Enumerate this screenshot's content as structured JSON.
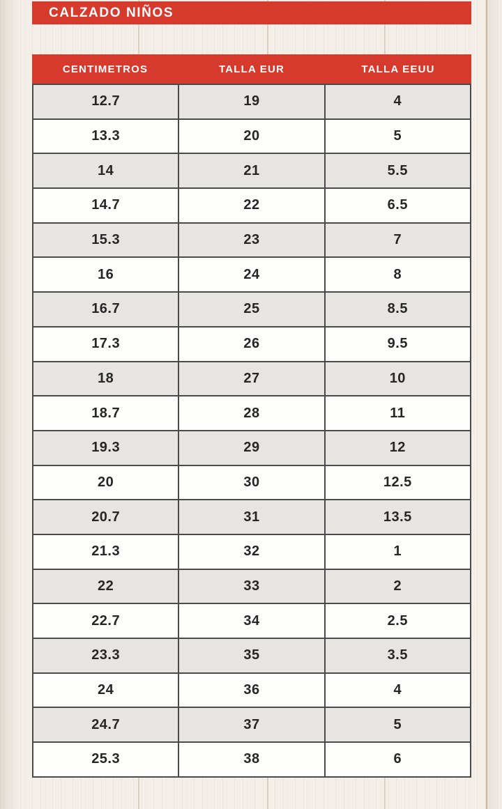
{
  "banner": {
    "title": "CALZADO NIÑOS"
  },
  "chart_data": {
    "type": "table",
    "title": "CALZADO NIÑOS",
    "columns": [
      "CENTIMETROS",
      "TALLA EUR",
      "TALLA EEUU"
    ],
    "rows": [
      [
        "12.7",
        "19",
        "4"
      ],
      [
        "13.3",
        "20",
        "5"
      ],
      [
        "14",
        "21",
        "5.5"
      ],
      [
        "14.7",
        "22",
        "6.5"
      ],
      [
        "15.3",
        "23",
        "7"
      ],
      [
        "16",
        "24",
        "8"
      ],
      [
        "16.7",
        "25",
        "8.5"
      ],
      [
        "17.3",
        "26",
        "9.5"
      ],
      [
        "18",
        "27",
        "10"
      ],
      [
        "18.7",
        "28",
        "11"
      ],
      [
        "19.3",
        "29",
        "12"
      ],
      [
        "20",
        "30",
        "12.5"
      ],
      [
        "20.7",
        "31",
        "13.5"
      ],
      [
        "21.3",
        "32",
        "1"
      ],
      [
        "22",
        "33",
        "2"
      ],
      [
        "22.7",
        "34",
        "2.5"
      ],
      [
        "23.3",
        "35",
        "3.5"
      ],
      [
        "24",
        "36",
        "4"
      ],
      [
        "24.7",
        "37",
        "5"
      ],
      [
        "25.3",
        "38",
        "6"
      ]
    ],
    "layout": {
      "row_striping": "alternating gray/white, first row gray",
      "header_position": "top"
    }
  },
  "colors": {
    "accent_red": "#d63a2c",
    "header_text": "#ffffff",
    "row_alt_gray": "#e6e5e2",
    "row_white": "#fdfdfc",
    "table_border": "#4a4a4a",
    "cell_text": "#262626",
    "background_wood": "#f3efe8"
  }
}
